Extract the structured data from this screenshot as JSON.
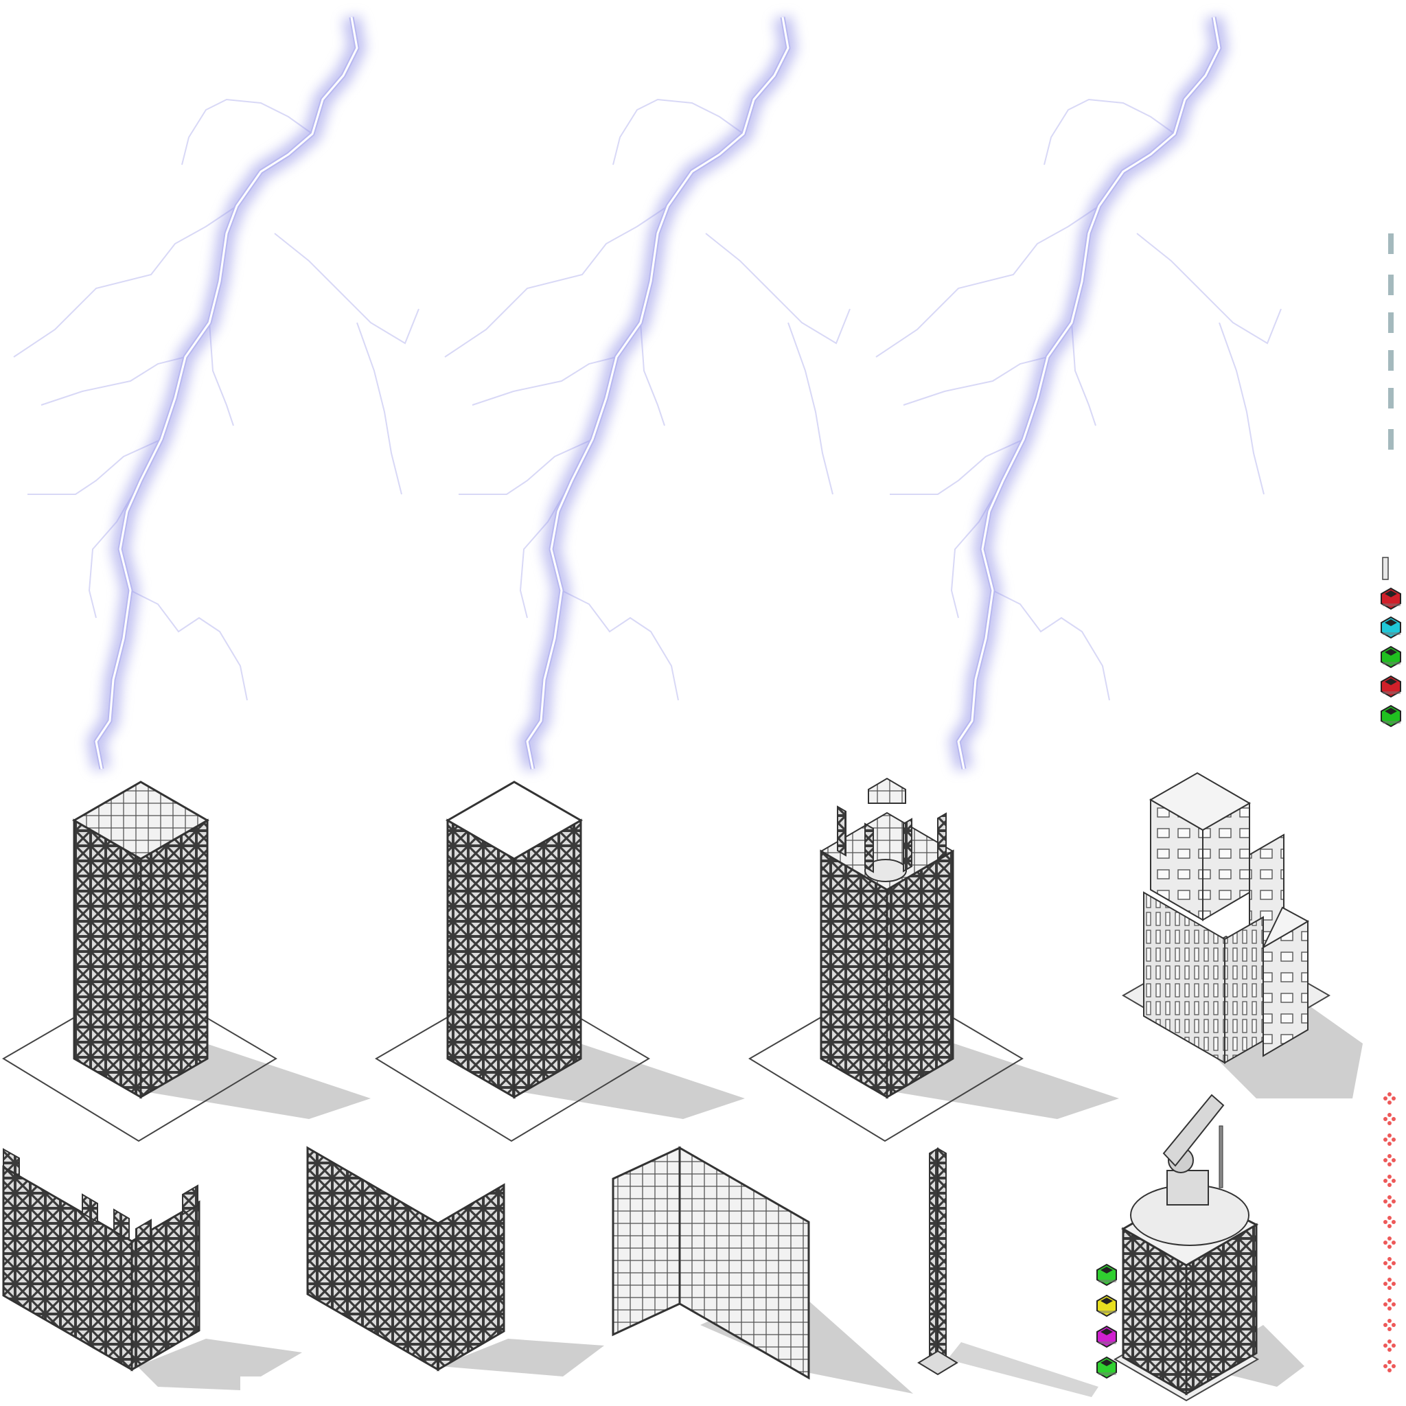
{
  "sheet": {
    "background": "#ffffff",
    "outline_color": "#333333",
    "panel_color": "#d9d9d9",
    "shadow_color": "#cccccc",
    "lightning_glow": "#8f8fe6",
    "lightning_core": "#ffffff"
  },
  "sprites": {
    "lightning": [
      {
        "name": "lightning-bolt-1"
      },
      {
        "name": "lightning-bolt-2"
      },
      {
        "name": "lightning-bolt-3"
      }
    ],
    "towers": [
      {
        "name": "lattice-tower-open-top"
      },
      {
        "name": "lattice-tower-capped"
      },
      {
        "name": "lattice-tower-crenellated"
      },
      {
        "name": "office-building"
      }
    ],
    "walls": [
      {
        "name": "lattice-wall-crenellated"
      },
      {
        "name": "lattice-wall-corner"
      },
      {
        "name": "glass-wall-corner"
      },
      {
        "name": "lattice-pylon"
      },
      {
        "name": "cannon-turret-tower"
      }
    ],
    "cars_side_strip": [
      {
        "name": "car-red",
        "color": "#d0202a"
      },
      {
        "name": "car-cyan",
        "color": "#20c8d8"
      },
      {
        "name": "car-green",
        "color": "#20c020"
      },
      {
        "name": "car-red",
        "color": "#d0202a"
      },
      {
        "name": "car-green",
        "color": "#20c020"
      }
    ],
    "cars_bottom_strip": [
      {
        "name": "car-green",
        "color": "#30d030"
      },
      {
        "name": "car-yellow",
        "color": "#e8e020"
      },
      {
        "name": "car-magenta",
        "color": "#d020d0"
      },
      {
        "name": "car-green",
        "color": "#30d030"
      }
    ],
    "sparks": {
      "name": "red-spark-column",
      "color": "#e83030"
    }
  }
}
